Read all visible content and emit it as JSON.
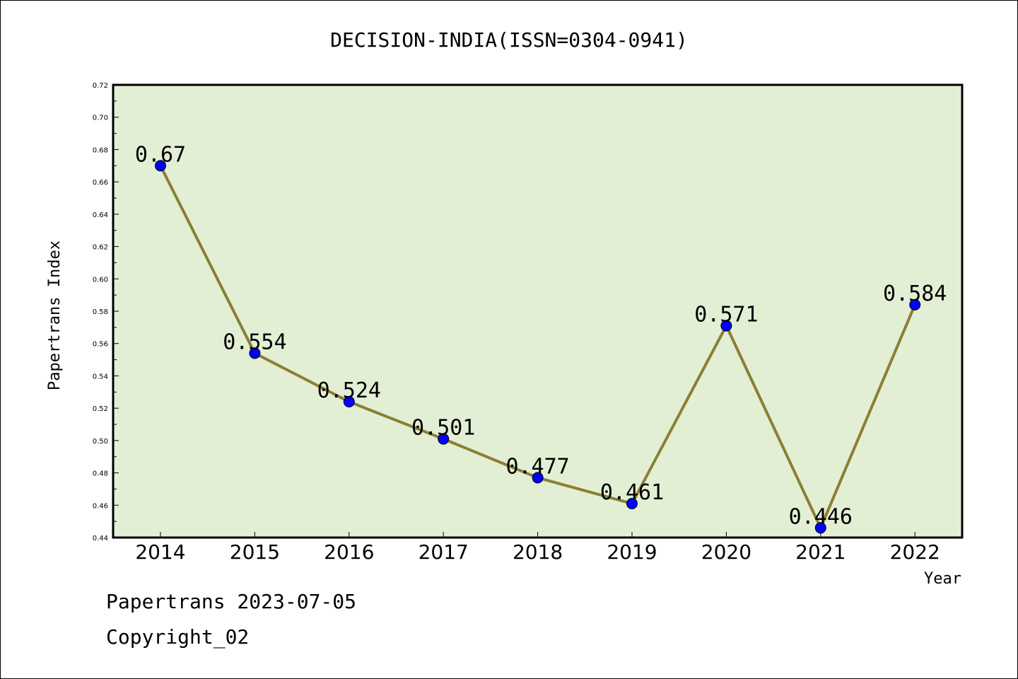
{
  "chart_data": {
    "type": "line",
    "title": "DECISION-INDIA(ISSN=0304-0941)",
    "xlabel": "Year",
    "ylabel": "Papertrans Index",
    "categories": [
      "2014",
      "2015",
      "2016",
      "2017",
      "2018",
      "2019",
      "2020",
      "2021",
      "2022"
    ],
    "series": [
      {
        "values": [
          0.67,
          0.554,
          0.524,
          0.501,
          0.477,
          0.461,
          0.571,
          0.446,
          0.584
        ],
        "labels": [
          "0.67",
          "0.554",
          "0.524",
          "0.501",
          "0.477",
          "0.461",
          "0.571",
          "0.446",
          "0.584"
        ],
        "line_color": "#8b7f33",
        "marker_color": "#0000ff"
      }
    ],
    "ylim": [
      0.44,
      0.72
    ],
    "yticks": [
      "0.44",
      "0.46",
      "0.48",
      "0.50",
      "0.52",
      "0.54",
      "0.56",
      "0.58",
      "0.60",
      "0.62",
      "0.64",
      "0.66",
      "0.68",
      "0.70",
      "0.72"
    ],
    "grid": false,
    "plot_background": "#e2efd5"
  },
  "footer": {
    "line1": "Papertrans 2023-07-05",
    "line2": "Copyright_02"
  }
}
